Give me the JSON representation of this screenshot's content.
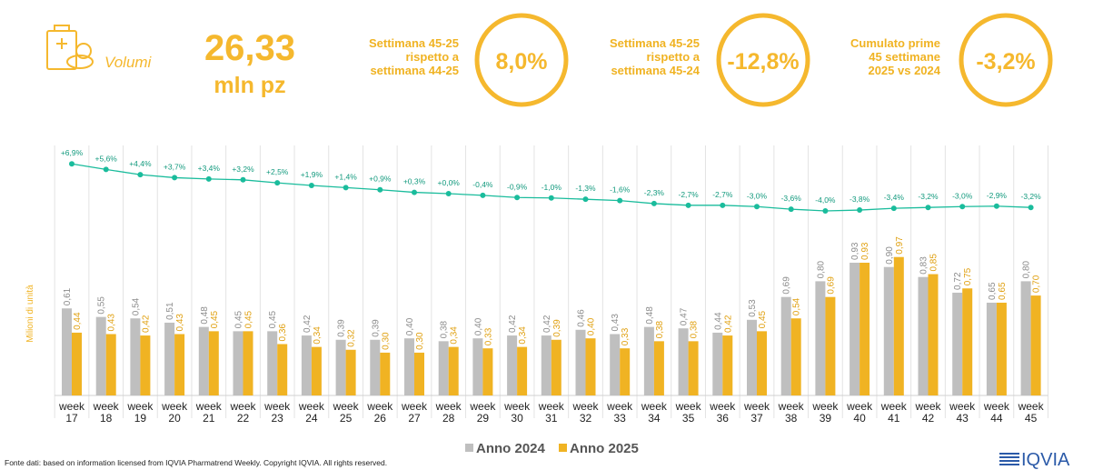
{
  "header": {
    "label": "Volumi",
    "value": "26,33",
    "unit": "mln pz"
  },
  "kpis": [
    {
      "text": "Settimana 45-25\nrispetto a\nsettimana 44-25",
      "value": "8,0%"
    },
    {
      "text": "Settimana 45-25\nrispetto a\nsettimana 45-24",
      "value": "-12,8%"
    },
    {
      "text": "Cumulato prime\n45 settimane\n2025 vs 2024",
      "value": "-3,2%"
    }
  ],
  "chart_data": {
    "type": "bar",
    "y_label": "Milioni di unità",
    "categories": [
      "week 17",
      "week 18",
      "week 19",
      "week 20",
      "week 21",
      "week 22",
      "week 23",
      "week 24",
      "week 25",
      "week 26",
      "week 27",
      "week 28",
      "week 29",
      "week 30",
      "week 31",
      "week 32",
      "week 33",
      "week 34",
      "week 35",
      "week 36",
      "week 37",
      "week 38",
      "week 39",
      "week 40",
      "week 41",
      "week 42",
      "week 43",
      "week 44",
      "week 45"
    ],
    "series": [
      {
        "name": "Anno 2024",
        "color": "#bfbfbf",
        "label_color": "#8c8c8c",
        "values": [
          0.61,
          0.55,
          0.54,
          0.51,
          0.48,
          0.45,
          0.45,
          0.42,
          0.39,
          0.39,
          0.4,
          0.38,
          0.4,
          0.42,
          0.42,
          0.46,
          0.43,
          0.48,
          0.47,
          0.44,
          0.53,
          0.69,
          0.8,
          0.93,
          0.9,
          0.83,
          0.72,
          0.65,
          0.8
        ],
        "value_labels": [
          "0,61",
          "0,55",
          "0,54",
          "0,51",
          "0,48",
          "0,45",
          "0,45",
          "0,42",
          "0,39",
          "0,39",
          "0,40",
          "0,38",
          "0,40",
          "0,42",
          "0,42",
          "0,46",
          "0,43",
          "0,48",
          "0,47",
          "0,44",
          "0,53",
          "0,69",
          "0,80",
          "0,93",
          "0,90",
          "0,83",
          "0,72",
          "0,65",
          "0,80"
        ]
      },
      {
        "name": "Anno 2025",
        "color": "#f0b323",
        "label_color": "#e0a010",
        "values": [
          0.44,
          0.43,
          0.42,
          0.43,
          0.45,
          0.45,
          0.36,
          0.34,
          0.32,
          0.3,
          0.3,
          0.34,
          0.33,
          0.34,
          0.39,
          0.4,
          0.33,
          0.38,
          0.38,
          0.42,
          0.45,
          0.54,
          0.69,
          0.93,
          0.97,
          0.85,
          0.75,
          0.65,
          0.7
        ],
        "value_labels": [
          "0,44",
          "0,43",
          "0,42",
          "0,43",
          "0,45",
          "0,45",
          "0,36",
          "0,34",
          "0,32",
          "0,30",
          "0,30",
          "0,34",
          "0,33",
          "0,34",
          "0,39",
          "0,40",
          "0,33",
          "0,38",
          "0,38",
          "0,42",
          "0,45",
          "0,54",
          "0,69",
          "0,93",
          "0,97",
          "0,85",
          "0,75",
          "0,65",
          "0,70"
        ]
      }
    ],
    "growth": {
      "color": "#1abc9c",
      "values": [
        6.9,
        5.6,
        4.4,
        3.7,
        3.4,
        3.2,
        2.5,
        1.9,
        1.4,
        0.9,
        0.3,
        0.0,
        -0.4,
        -0.9,
        -1.0,
        -1.3,
        -1.6,
        -2.3,
        -2.7,
        -2.7,
        -3.0,
        -3.6,
        -4.0,
        -3.8,
        -3.4,
        -3.2,
        -3.0,
        -2.9,
        -3.2
      ],
      "value_labels": [
        "+6,9%",
        "+5,6%",
        "+4,4%",
        "+3,7%",
        "+3,4%",
        "+3,2%",
        "+2,5%",
        "+1,9%",
        "+1,4%",
        "+0,9%",
        "+0,3%",
        "+0,0%",
        "-0,4%",
        "-0,9%",
        "-1,0%",
        "-1,3%",
        "-1,6%",
        "-2,3%",
        "-2,7%",
        "-2,7%",
        "-3,0%",
        "-3,6%",
        "-4,0%",
        "-3,8%",
        "-3,4%",
        "-3,2%",
        "-3,0%",
        "-2,9%",
        "-3,2%"
      ]
    }
  },
  "footer": {
    "source": "Fonte dati: based on information licensed from IQVIA Pharmatrend Weekly. Copyright IQVIA. All rights reserved.",
    "logo": "IQVIA"
  }
}
